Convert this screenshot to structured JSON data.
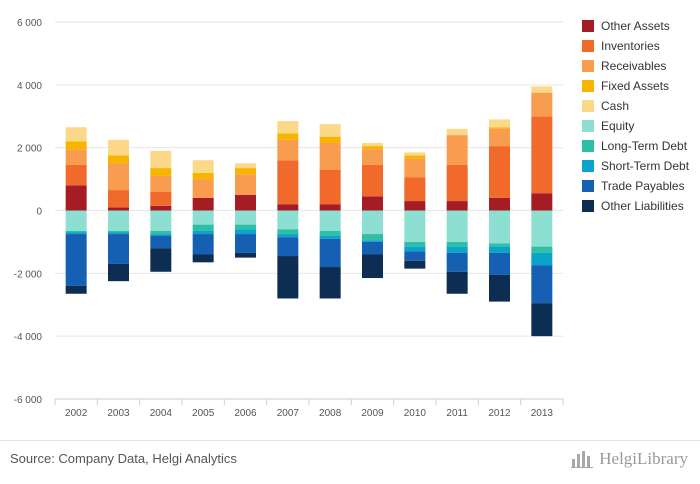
{
  "chart_data": {
    "type": "bar",
    "stacked": true,
    "categories": [
      "2002",
      "2003",
      "2004",
      "2005",
      "2006",
      "2007",
      "2008",
      "2009",
      "2010",
      "2011",
      "2012",
      "2013"
    ],
    "ylim": [
      -6000,
      6000
    ],
    "yticks": [
      6000,
      4000,
      2000,
      0,
      -2000,
      -4000,
      -6000
    ],
    "ytick_labels": [
      "6 000",
      "4 000",
      "2 000",
      "0",
      "-2 000",
      "-4 000",
      "-6 000"
    ],
    "grid": true,
    "legend_position": "right",
    "series": [
      {
        "name": "Other Assets",
        "color": "#a51c24",
        "values": [
          800,
          100,
          150,
          400,
          500,
          200,
          200,
          450,
          300,
          300,
          400,
          550
        ]
      },
      {
        "name": "Inventories",
        "color": "#f26a2b",
        "values": [
          650,
          550,
          450,
          0,
          0,
          1400,
          1100,
          1000,
          750,
          1150,
          1650,
          2450
        ]
      },
      {
        "name": "Receivables",
        "color": "#f89c4f",
        "values": [
          500,
          850,
          500,
          600,
          650,
          650,
          850,
          500,
          600,
          950,
          550,
          750
        ]
      },
      {
        "name": "Fixed Assets",
        "color": "#f7b500",
        "values": [
          250,
          250,
          250,
          200,
          200,
          200,
          200,
          100,
          100,
          0,
          50,
          0
        ]
      },
      {
        "name": "Cash",
        "color": "#fcd889",
        "values": [
          450,
          500,
          550,
          400,
          150,
          400,
          400,
          100,
          100,
          200,
          250,
          200
        ]
      },
      {
        "name": "Equity",
        "color": "#8ddfd2",
        "values": [
          -650,
          -650,
          -650,
          -450,
          -450,
          -600,
          -650,
          -750,
          -1000,
          -1000,
          -1050,
          -1150
        ]
      },
      {
        "name": "Long-Term Debt",
        "color": "#2fbea6",
        "values": [
          -50,
          -50,
          -100,
          -200,
          -150,
          -150,
          -150,
          -200,
          -150,
          -150,
          -100,
          -200
        ]
      },
      {
        "name": "Short-Term Debt",
        "color": "#0aa3c9",
        "values": [
          -50,
          -50,
          -50,
          -100,
          -150,
          -100,
          -100,
          -50,
          -150,
          -200,
          -200,
          -400
        ]
      },
      {
        "name": "Trade Payables",
        "color": "#1560b3",
        "values": [
          -1650,
          -950,
          -400,
          -650,
          -600,
          -600,
          -900,
          -400,
          -300,
          -600,
          -700,
          -1200
        ]
      },
      {
        "name": "Other Liabilities",
        "color": "#0d2d52",
        "values": [
          -250,
          -550,
          -750,
          -250,
          -150,
          -1350,
          -1000,
          -750,
          -250,
          -700,
          -850,
          -1050
        ]
      }
    ]
  },
  "footer": {
    "source": "Source: Company Data, Helgi Analytics",
    "brand": "HelgiLibrary"
  }
}
